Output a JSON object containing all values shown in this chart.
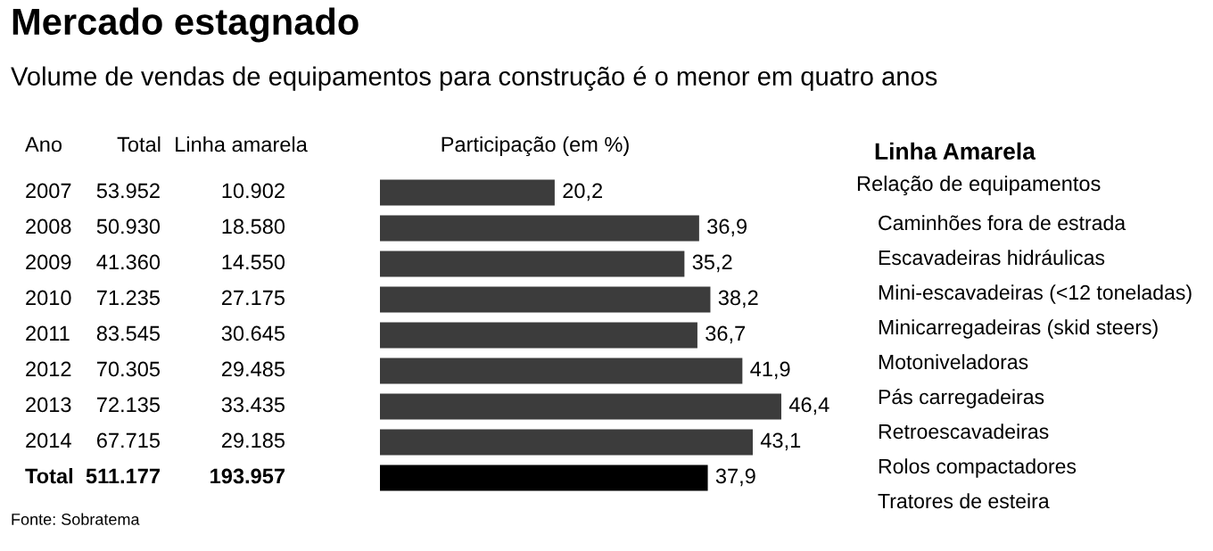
{
  "chart_data": [
    {
      "type": "bar",
      "orientation": "horizontal",
      "title": "Mercado estagnado",
      "subtitle": "Volume de vendas de equipamentos para construção é o menor em quatro anos",
      "ylabel": "Ano",
      "xlabel": "Participação (em %)",
      "categories": [
        "2007",
        "2008",
        "2009",
        "2010",
        "2011",
        "2012",
        "2013",
        "2014",
        "Total"
      ],
      "values": [
        20.2,
        36.9,
        35.2,
        38.2,
        36.7,
        41.9,
        46.4,
        43.1,
        37.9
      ],
      "value_labels": [
        "20,2",
        "36,9",
        "35,2",
        "38,2",
        "36,7",
        "41,9",
        "46,4",
        "43,1",
        "37,9"
      ],
      "colors": [
        "#3c3c3c",
        "#3c3c3c",
        "#3c3c3c",
        "#3c3c3c",
        "#3c3c3c",
        "#3c3c3c",
        "#3c3c3c",
        "#3c3c3c",
        "#000000"
      ],
      "annotations": [
        "Fonte: Sobratema"
      ]
    },
    {
      "type": "other",
      "categories": [
        "Total",
        "Linha amarela"
      ],
      "annotations": [
        "53.952",
        "10.902",
        "50.930",
        "18.580",
        "41.360",
        "14.550",
        "71.235",
        "27.175",
        "83.545",
        "30.645",
        "70.305",
        "29.485",
        "72.135",
        "33.435",
        "67.715",
        "29.185",
        "511.177",
        "193.957"
      ]
    },
    {
      "type": "other",
      "title": "Linha Amarela",
      "subtitle": "Relação de equipamentos",
      "annotations": [
        "Caminhões fora de estrada",
        "Escavadeiras hidráulicas",
        "Mini-escavadeiras (<12 toneladas)",
        "Minicarregadeiras (skid steers)",
        "Motoniveladoras",
        "Pás carregadeiras",
        "Retroescavadeiras",
        "Rolos compactadores",
        "Tratores de esteira"
      ]
    }
  ]
}
